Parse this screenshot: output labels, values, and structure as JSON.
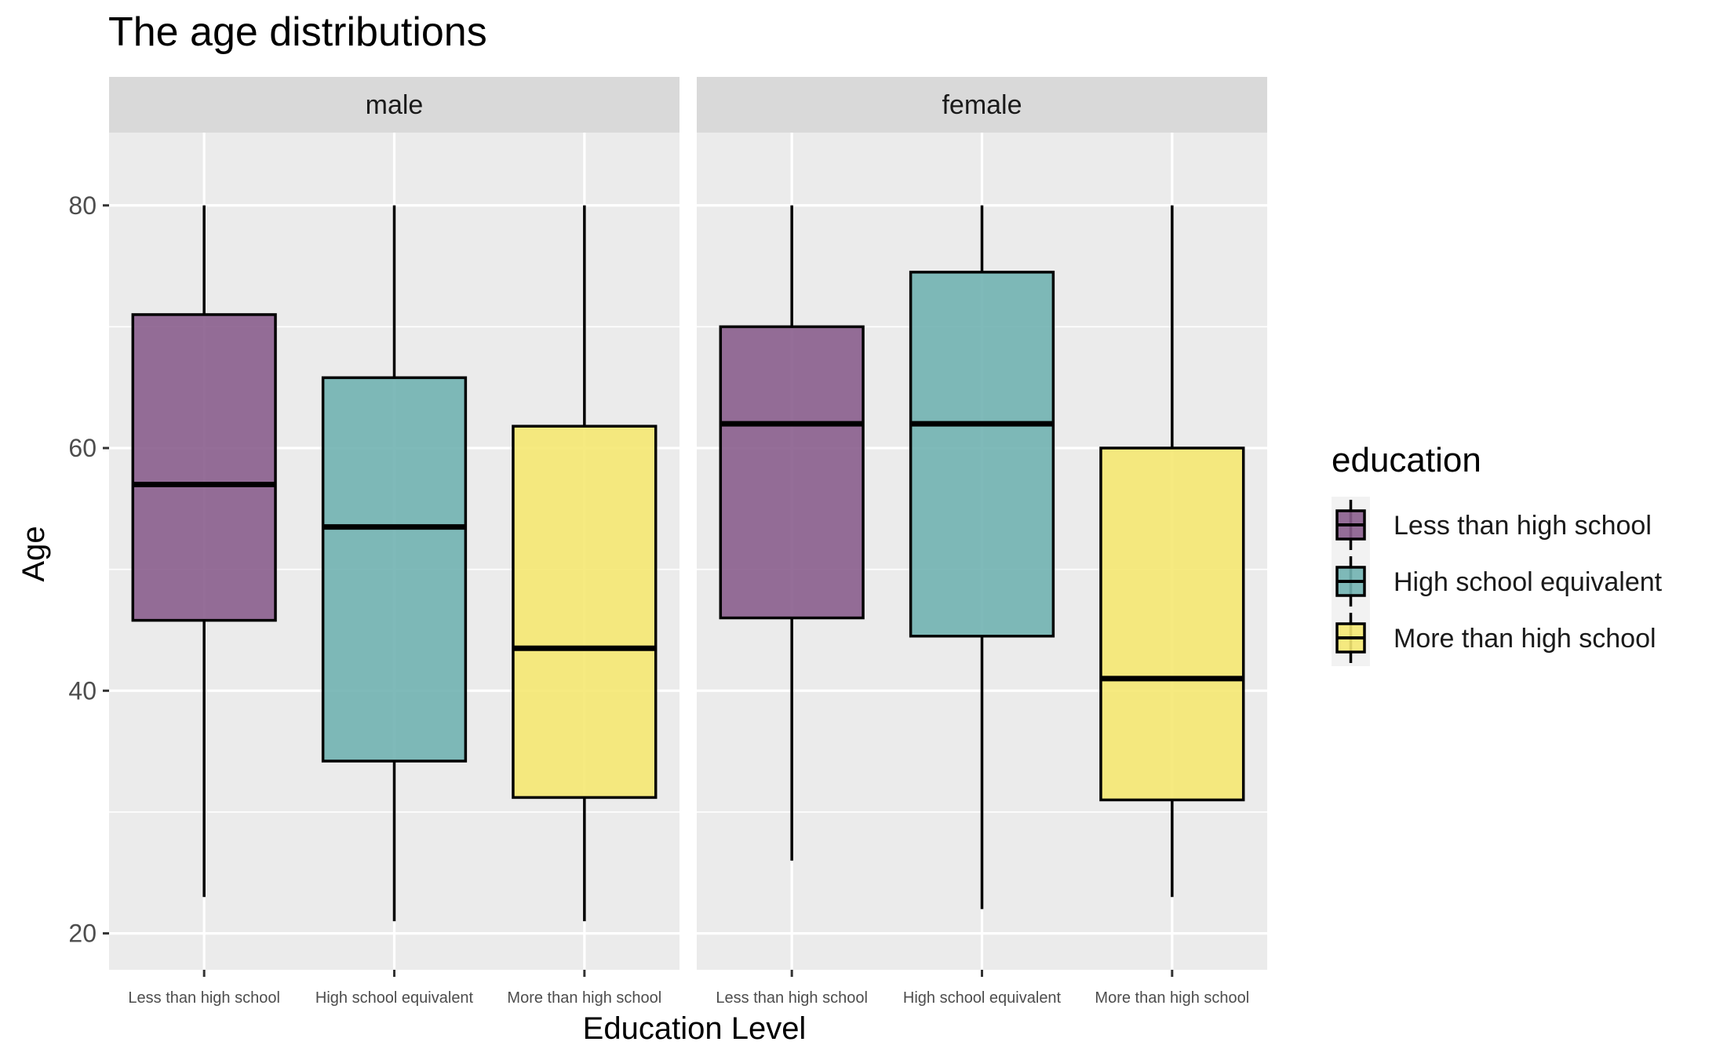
{
  "chart_data": {
    "type": "boxplot",
    "title": "The age distributions",
    "xlabel": "Education Level",
    "ylabel": "Age",
    "ylim": [
      17,
      86
    ],
    "yticks": [
      20,
      40,
      60,
      80
    ],
    "grid": true,
    "legend_position": "right",
    "legend": {
      "title": "education",
      "items": [
        {
          "label": "Less than high school",
          "color": "#8A5E8D"
        },
        {
          "label": "High school equivalent",
          "color": "#71B3B1"
        },
        {
          "label": "More than high school",
          "color": "#F5E872"
        }
      ]
    },
    "categories": [
      "Less than high school",
      "High school equivalent",
      "More than high school"
    ],
    "colors": {
      "Less than high school": "#8A5E8D",
      "High school equivalent": "#71B3B1",
      "More than high school": "#F5E872"
    },
    "panels": [
      {
        "label": "male",
        "boxes": [
          {
            "category": "Less than high school",
            "min": 23,
            "q1": 45.8,
            "median": 57,
            "q3": 71,
            "max": 80
          },
          {
            "category": "High school equivalent",
            "min": 21,
            "q1": 34.2,
            "median": 53.5,
            "q3": 65.8,
            "max": 80
          },
          {
            "category": "More than high school",
            "min": 21,
            "q1": 31.2,
            "median": 43.5,
            "q3": 61.8,
            "max": 80
          }
        ]
      },
      {
        "label": "female",
        "boxes": [
          {
            "category": "Less than high school",
            "min": 26,
            "q1": 46,
            "median": 62,
            "q3": 70,
            "max": 80
          },
          {
            "category": "High school equivalent",
            "min": 22,
            "q1": 44.5,
            "median": 62,
            "q3": 74.5,
            "max": 80
          },
          {
            "category": "More than high school",
            "min": 23,
            "q1": 31,
            "median": 41,
            "q3": 60,
            "max": 80
          }
        ]
      }
    ],
    "panel_background": "#EBEBEB",
    "strip_background": "#D9D9D9"
  }
}
